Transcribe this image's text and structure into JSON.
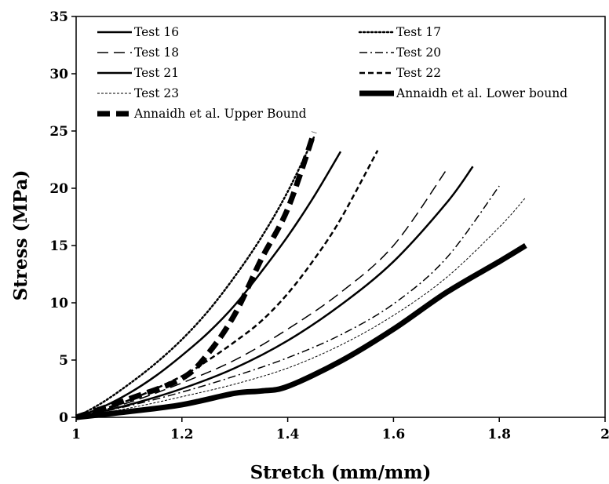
{
  "chart_data": {
    "type": "line",
    "title": "",
    "xlabel": "Stretch (mm/mm)",
    "ylabel": "Stress (MPa)",
    "xlim": [
      1,
      2
    ],
    "ylim": [
      0,
      35
    ],
    "xticks": [
      "1",
      "1.2",
      "1.4",
      "1.6",
      "1.8",
      "2"
    ],
    "yticks": [
      "0",
      "5",
      "10",
      "15",
      "20",
      "25",
      "30",
      "35"
    ],
    "grid": false,
    "legend": "top, inside plot area, two columns",
    "series": [
      {
        "name": "Test 16",
        "style": "solid",
        "width": 2.5,
        "x": [
          1.0,
          1.05,
          1.1,
          1.15,
          1.2,
          1.25,
          1.3,
          1.35,
          1.4,
          1.45,
          1.5
        ],
        "y": [
          0,
          0.9,
          2.1,
          3.6,
          5.4,
          7.4,
          9.8,
          12.7,
          15.8,
          19.3,
          23.2
        ]
      },
      {
        "name": "Test 17",
        "style": "dotted",
        "width": 2.5,
        "x": [
          1.0,
          1.05,
          1.1,
          1.15,
          1.2,
          1.25,
          1.3,
          1.35,
          1.4,
          1.45
        ],
        "y": [
          0,
          1.3,
          2.9,
          4.7,
          6.8,
          9.3,
          12.3,
          15.7,
          19.7,
          24.5
        ]
      },
      {
        "name": "Test 18",
        "style": "longdash",
        "width": 1.5,
        "x": [
          1.0,
          1.1,
          1.2,
          1.3,
          1.4,
          1.5,
          1.6,
          1.7
        ],
        "y": [
          0,
          1.3,
          3.0,
          5.0,
          7.7,
          10.9,
          15.0,
          21.6
        ]
      },
      {
        "name": "Test 20",
        "style": "dashdot",
        "width": 1.5,
        "x": [
          1.0,
          1.1,
          1.2,
          1.3,
          1.4,
          1.5,
          1.6,
          1.7,
          1.8
        ],
        "y": [
          0,
          1.0,
          2.2,
          3.6,
          5.2,
          7.2,
          9.9,
          13.9,
          20.2
        ]
      },
      {
        "name": "Test 21",
        "style": "solid",
        "width": 2.5,
        "x": [
          1.0,
          1.1,
          1.2,
          1.3,
          1.4,
          1.5,
          1.6,
          1.7,
          1.75
        ],
        "y": [
          0,
          1.1,
          2.5,
          4.3,
          6.7,
          9.8,
          13.6,
          18.7,
          21.9
        ]
      },
      {
        "name": "Test 22",
        "style": "dashed",
        "width": 2.5,
        "x": [
          1.0,
          1.1,
          1.2,
          1.25,
          1.3,
          1.35,
          1.4,
          1.45,
          1.5,
          1.57
        ],
        "y": [
          0,
          1.5,
          3.6,
          5.0,
          6.6,
          8.4,
          10.8,
          13.8,
          17.3,
          23.3
        ]
      },
      {
        "name": "Test 23",
        "style": "finedash",
        "width": 1,
        "x": [
          1.0,
          1.1,
          1.2,
          1.3,
          1.4,
          1.5,
          1.6,
          1.7,
          1.8,
          1.85
        ],
        "y": [
          0,
          0.8,
          1.8,
          2.9,
          4.3,
          6.3,
          8.9,
          12.2,
          16.6,
          19.2
        ]
      },
      {
        "name": "Annaidh et al. Lower bound",
        "style": "solid",
        "width": 7,
        "x": [
          1.0,
          1.1,
          1.2,
          1.3,
          1.35,
          1.4,
          1.5,
          1.6,
          1.7,
          1.8,
          1.85
        ],
        "y": [
          0,
          0.5,
          1.1,
          2.1,
          2.3,
          2.7,
          4.9,
          7.7,
          10.9,
          13.6,
          15.0
        ]
      },
      {
        "name": "Annaidh et al. Upper Bound",
        "style": "heavydash",
        "width": 7,
        "x": [
          1.0,
          1.1,
          1.2,
          1.25,
          1.3,
          1.35,
          1.4,
          1.45
        ],
        "y": [
          0,
          1.6,
          3.4,
          5.6,
          9.0,
          13.8,
          18.2,
          24.9
        ]
      }
    ]
  }
}
